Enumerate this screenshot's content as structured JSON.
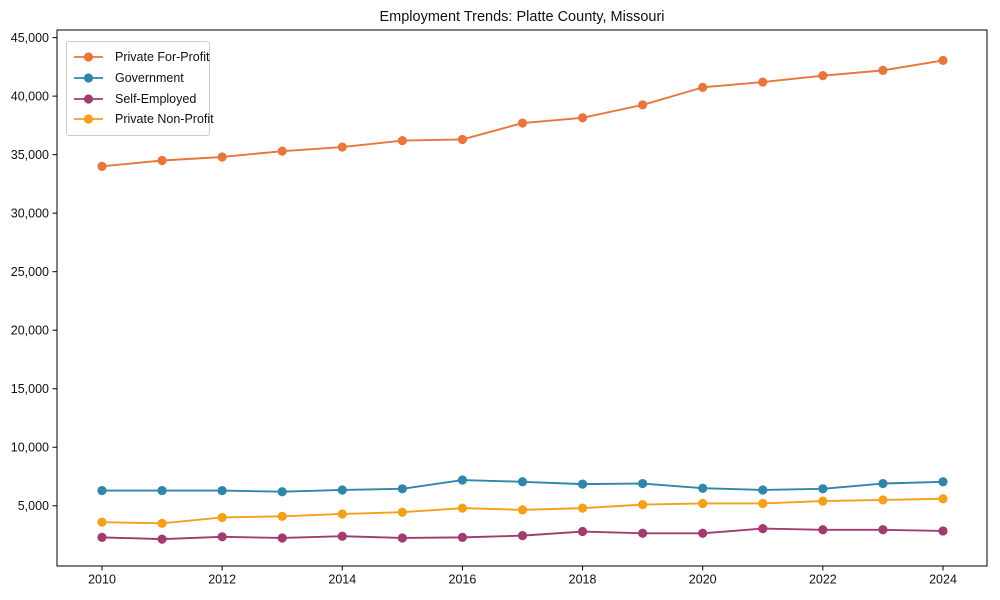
{
  "title": "Employment Trends: Platte County, Missouri",
  "chart_data": {
    "type": "line",
    "title": "Employment Trends: Platte County, Missouri",
    "xlabel": "",
    "ylabel": "",
    "grid": false,
    "legend_position": "upper-left",
    "xlim": [
      2009.25,
      2024.75
    ],
    "ylim": [
      0,
      45650
    ],
    "x": [
      2010,
      2011,
      2012,
      2013,
      2014,
      2015,
      2016,
      2017,
      2018,
      2019,
      2020,
      2021,
      2022,
      2023,
      2024
    ],
    "x_ticks": [
      2010,
      2012,
      2014,
      2016,
      2018,
      2020,
      2022,
      2024
    ],
    "x_tick_labels": [
      "2010",
      "2012",
      "2014",
      "2016",
      "2018",
      "2020",
      "2022",
      "2024"
    ],
    "y_ticks": [
      5000,
      10000,
      15000,
      20000,
      25000,
      30000,
      35000,
      40000,
      45000
    ],
    "y_tick_labels": [
      "5,000",
      "10,000",
      "15,000",
      "20,000",
      "25,000",
      "30,000",
      "35,000",
      "40,000",
      "45,000"
    ],
    "series": [
      {
        "name": "Private For-Profit",
        "color": "#E8763C",
        "values": [
          34000,
          34500,
          34800,
          35300,
          35650,
          36200,
          36300,
          37700,
          38150,
          39250,
          40750,
          41200,
          41750,
          42200,
          43050
        ]
      },
      {
        "name": "Government",
        "color": "#2E86AB",
        "values": [
          6300,
          6300,
          6300,
          6200,
          6350,
          6450,
          7200,
          7050,
          6850,
          6900,
          6500,
          6350,
          6450,
          6900,
          7050
        ]
      },
      {
        "name": "Self-Employed",
        "color": "#A23B72",
        "values": [
          2300,
          2150,
          2350,
          2250,
          2400,
          2250,
          2300,
          2450,
          2800,
          2650,
          2650,
          3050,
          2950,
          2950,
          2850
        ]
      },
      {
        "name": "Private Non-Profit",
        "color": "#F5A01B",
        "values": [
          3600,
          3500,
          4000,
          4100,
          4300,
          4450,
          4800,
          4650,
          4800,
          5100,
          5200,
          5200,
          5400,
          5500,
          5600
        ]
      }
    ]
  }
}
